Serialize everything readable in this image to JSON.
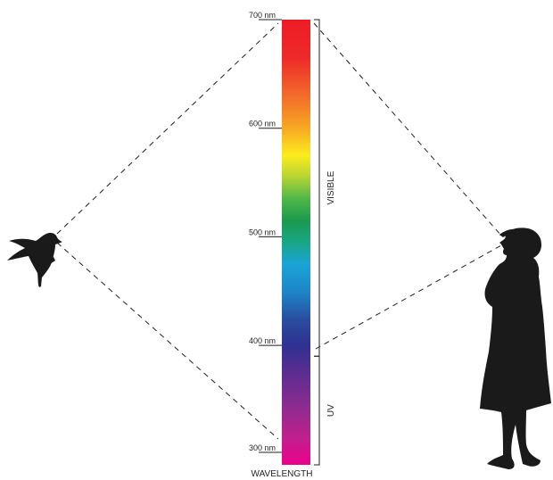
{
  "axis": {
    "title": "WAVELENGTH",
    "unit": "nm",
    "range": [
      290,
      700
    ],
    "ticks": [
      {
        "value": 700,
        "label": "700 nm"
      },
      {
        "value": 600,
        "label": "600 nm"
      },
      {
        "value": 500,
        "label": "500 nm"
      },
      {
        "value": 400,
        "label": "400 nm"
      },
      {
        "value": 300,
        "label": "300 nm"
      }
    ]
  },
  "regions": [
    {
      "label": "VISIBLE",
      "from": 390,
      "to": 700
    },
    {
      "label": "UV",
      "from": 290,
      "to": 390
    }
  ],
  "spectrum": [
    {
      "value": 700,
      "color": "#ed1c24"
    },
    {
      "value": 665,
      "color": "#ee2a29"
    },
    {
      "value": 630,
      "color": "#f26b2a"
    },
    {
      "value": 600,
      "color": "#f7a823"
    },
    {
      "value": 575,
      "color": "#fbec1d"
    },
    {
      "value": 555,
      "color": "#b5d334"
    },
    {
      "value": 535,
      "color": "#4fb748"
    },
    {
      "value": 515,
      "color": "#1b9a4e"
    },
    {
      "value": 495,
      "color": "#19a685"
    },
    {
      "value": 475,
      "color": "#1ba4d6"
    },
    {
      "value": 450,
      "color": "#1c87c9"
    },
    {
      "value": 425,
      "color": "#2a4fa0"
    },
    {
      "value": 400,
      "color": "#2e3192"
    },
    {
      "value": 375,
      "color": "#5b2d90"
    },
    {
      "value": 345,
      "color": "#8b2c8f"
    },
    {
      "value": 315,
      "color": "#c0208e"
    },
    {
      "value": 290,
      "color": "#ec008c"
    }
  ],
  "figures": {
    "bird": "bird-silhouette",
    "human": "human-silhouette"
  },
  "colors": {
    "ink": "#231f20",
    "silhouette": "#1a1a1a"
  }
}
